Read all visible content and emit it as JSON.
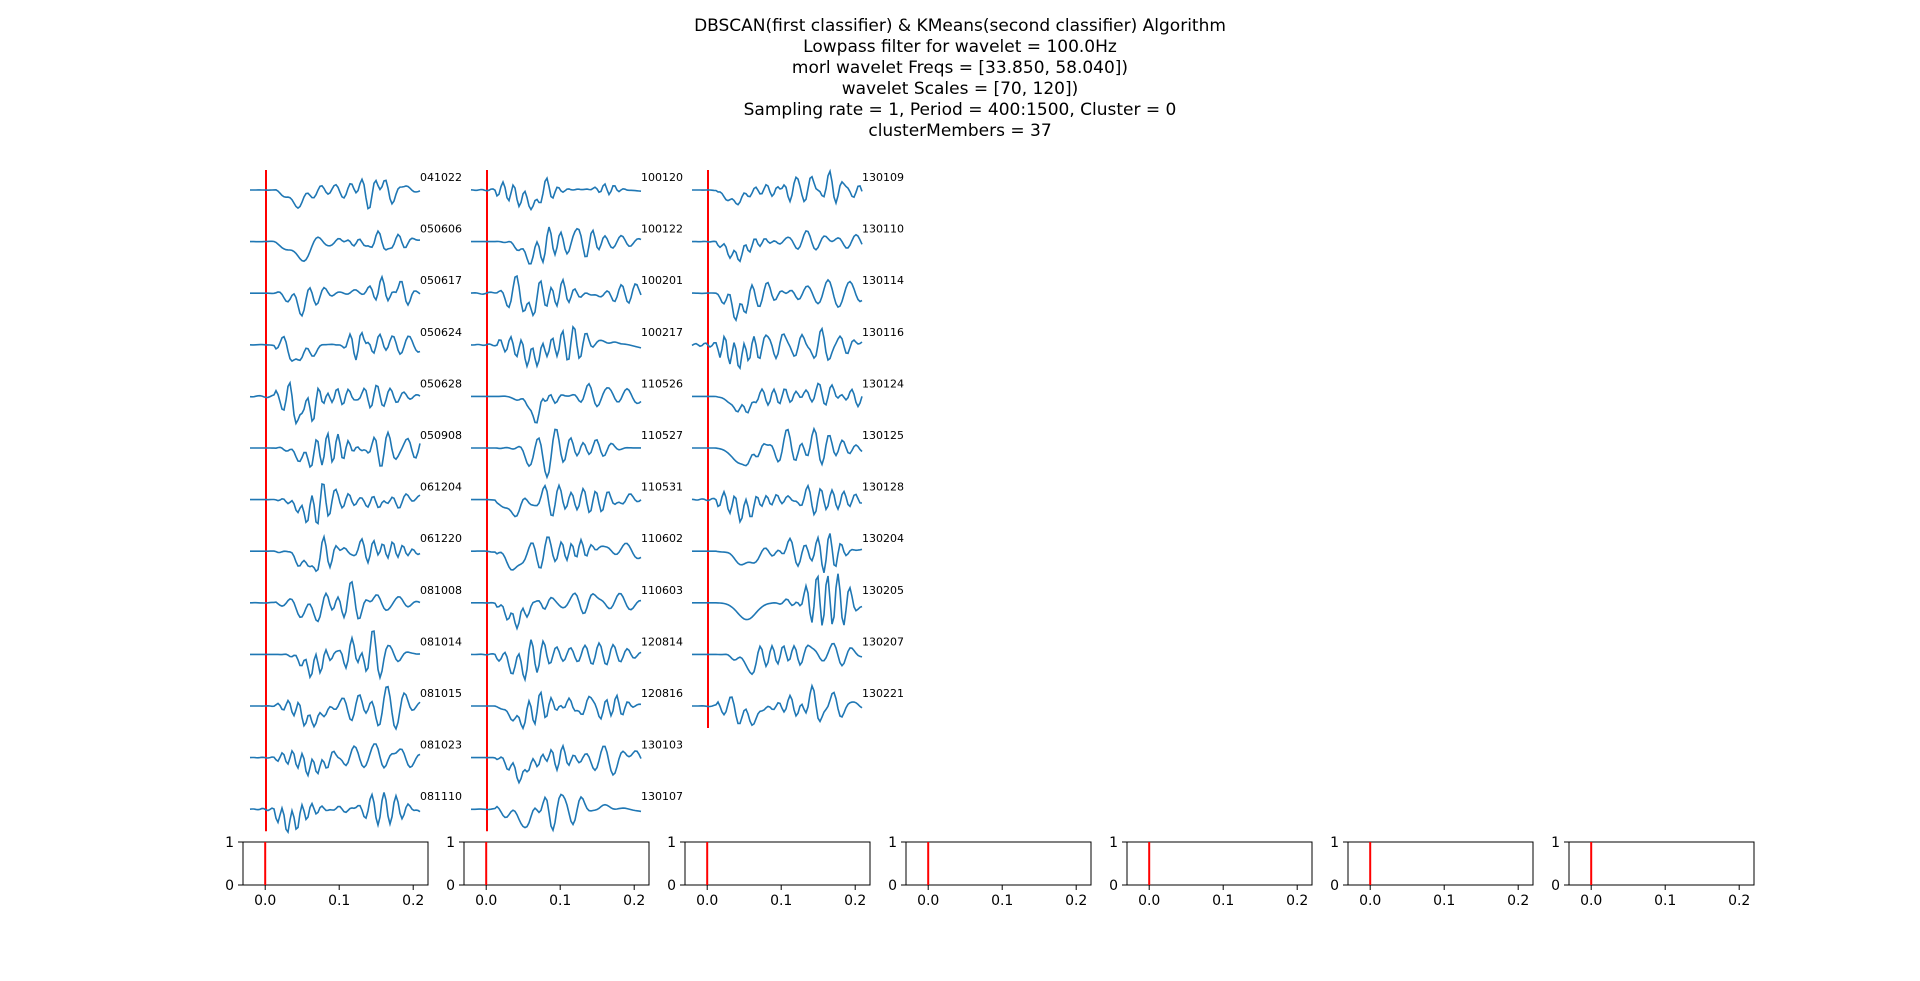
{
  "figure": {
    "title_lines": [
      "DBSCAN(first classifier) & KMeans(second classifier) Algorithm",
      "Lowpass filter for wavelet = 100.0Hz",
      "morl wavelet Freqs = [33.850, 58.040])",
      "wavelet Scales = [70, 120])",
      "Sampling rate = 1, Period = 400:1500, Cluster = 0",
      "clusterMembers = 37"
    ]
  },
  "chart_data": {
    "type": "line",
    "trace_color": "#1f77b4",
    "marker_color": "#ff0000",
    "marker_x": 0.0,
    "trace_x_range": [
      -0.02,
      0.21
    ],
    "columns": [
      {
        "labels": [
          "041022",
          "050606",
          "050617",
          "050624",
          "050628",
          "050908",
          "061204",
          "061220",
          "081008",
          "081014",
          "081015",
          "081023",
          "081110"
        ]
      },
      {
        "labels": [
          "100120",
          "100122",
          "100201",
          "100217",
          "110526",
          "110527",
          "110531",
          "110602",
          "110603",
          "120814",
          "120816",
          "130103",
          "130107"
        ]
      },
      {
        "labels": [
          "130109",
          "130110",
          "130114",
          "130116",
          "130124",
          "130125",
          "130128",
          "130204",
          "130205",
          "130207",
          "130221"
        ]
      }
    ],
    "axes_panels": {
      "count": 7,
      "xlim": [
        -0.03,
        0.22
      ],
      "ylim": [
        0,
        1
      ],
      "xticks": [
        "0.0",
        "0.1",
        "0.2"
      ],
      "yticks": [
        "0",
        "1"
      ],
      "vline_x": 0.0
    }
  }
}
